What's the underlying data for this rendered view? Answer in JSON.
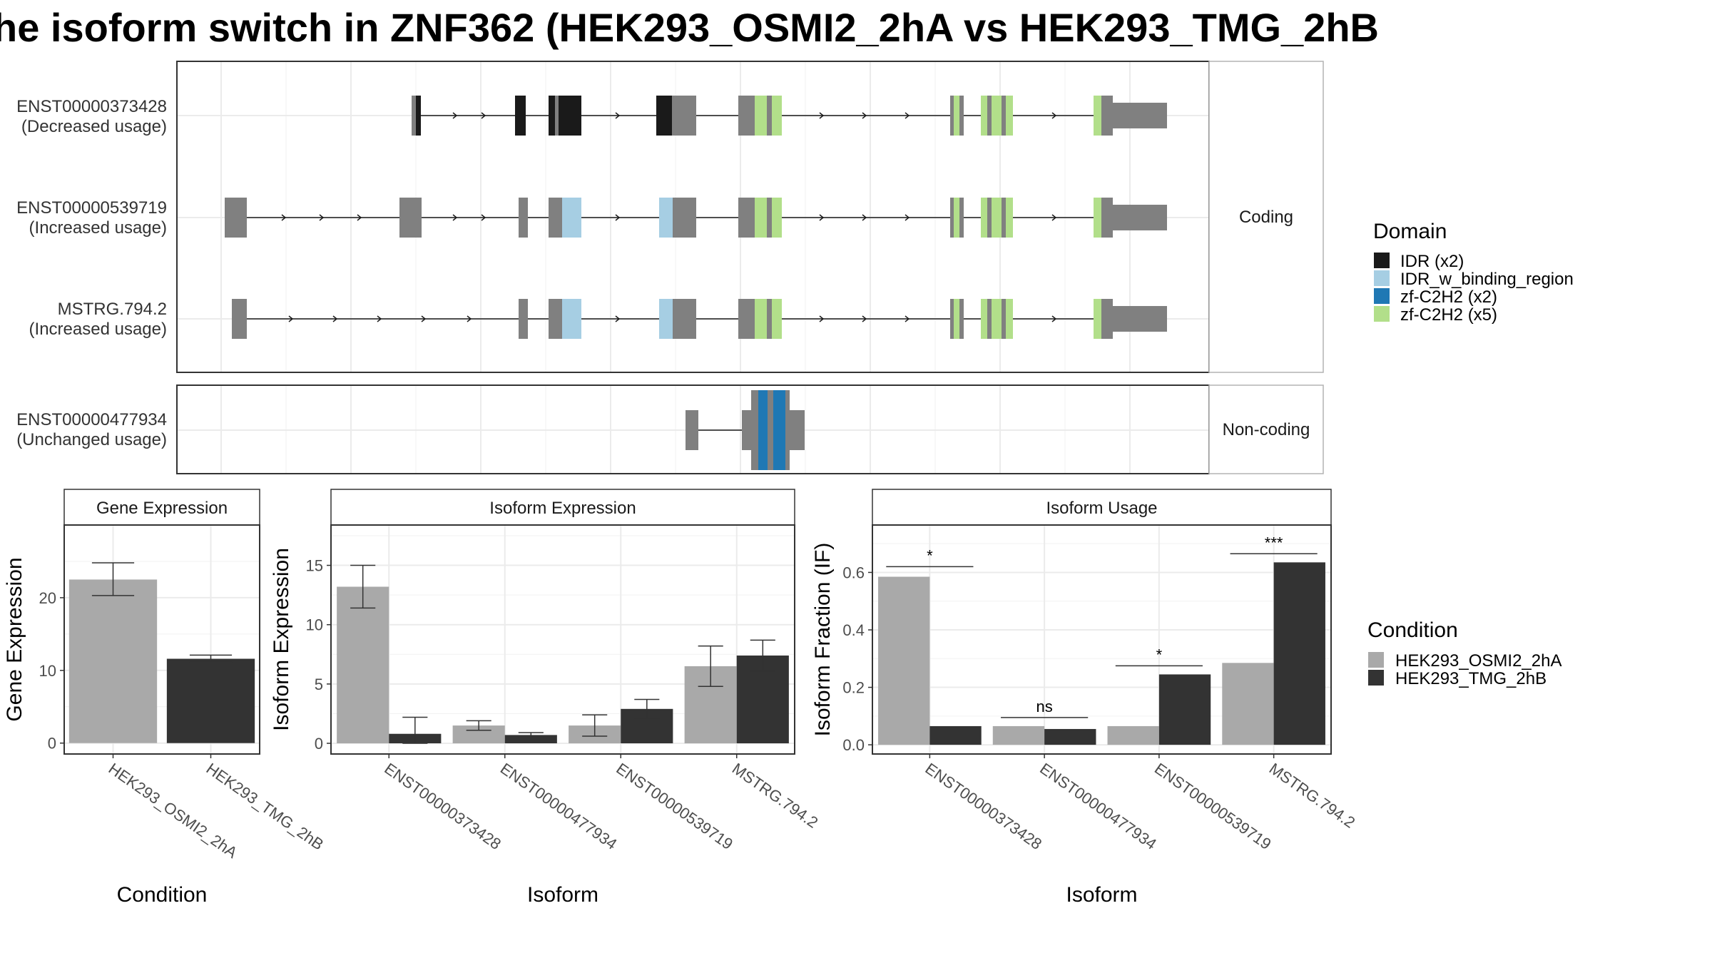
{
  "title": "he isoform switch in ZNF362 (HEK293_OSMI2_2hA vs HEK293_TMG_2hB",
  "colors": {
    "exon": "#808080",
    "IDR (x2)": "#1a1a1a",
    "IDR_w_binding_region": "#a6cee3",
    "zf-C2H2 (x2)": "#1f78b4",
    "zf-C2H2 (x5)": "#b2df8a",
    "cond1": "#a9a9a9",
    "cond2": "#333333",
    "grid": "#ebebeb",
    "panel_border": "#333333"
  },
  "transcript_panel": {
    "coding_label": "Coding",
    "noncoding_label": "Non-coding",
    "transcripts": [
      {
        "id": "ENST00000373428",
        "status": "(Decreased usage)",
        "group": "coding"
      },
      {
        "id": "ENST00000539719",
        "status": "(Increased usage)",
        "group": "coding"
      },
      {
        "id": "MSTRG.794.2",
        "status": "(Increased usage)",
        "group": "coding"
      },
      {
        "id": "ENST00000477934",
        "status": "(Unchanged usage)",
        "group": "noncoding"
      }
    ]
  },
  "legend_domain": {
    "title": "Domain",
    "items": [
      "IDR (x2)",
      "IDR_w_binding_region",
      "zf-C2H2 (x2)",
      "zf-C2H2 (x5)"
    ]
  },
  "legend_condition": {
    "title": "Condition",
    "items": [
      "HEK293_OSMI2_2hA",
      "HEK293_TMG_2hB"
    ]
  },
  "chart_data": [
    {
      "type": "bar",
      "title": "Gene Expression",
      "xlabel": "Condition",
      "ylabel": "Gene Expression",
      "categories": [
        "HEK293_OSMI2_2hA",
        "HEK293_TMG_2hB"
      ],
      "values": [
        22.5,
        11.6
      ],
      "errors": [
        [
          20.3,
          24.8
        ],
        [
          11.1,
          12.1
        ]
      ],
      "ylim": [
        -1.5,
        30
      ],
      "yticks": [
        0,
        10,
        20
      ],
      "grid": true
    },
    {
      "type": "bar",
      "title": "Isoform Expression",
      "xlabel": "Isoform",
      "ylabel": "Isoform Expression",
      "categories": [
        "ENST00000373428",
        "ENST00000477934",
        "ENST00000539719",
        "MSTRG.794.2"
      ],
      "series": [
        {
          "name": "HEK293_OSMI2_2hA",
          "values": [
            13.2,
            1.5,
            1.5,
            6.5
          ],
          "errors": [
            [
              11.4,
              15.0
            ],
            [
              1.1,
              1.9
            ],
            [
              0.6,
              2.4
            ],
            [
              4.8,
              8.2
            ]
          ]
        },
        {
          "name": "HEK293_TMG_2hB",
          "values": [
            0.8,
            0.7,
            2.9,
            7.4
          ],
          "errors": [
            [
              0.0,
              2.2
            ],
            [
              0.5,
              0.9
            ],
            [
              2.1,
              3.7
            ],
            [
              6.1,
              8.7
            ]
          ]
        }
      ],
      "ylim": [
        -0.9,
        18.4
      ],
      "yticks": [
        0,
        5,
        10,
        15
      ],
      "grid": true
    },
    {
      "type": "bar",
      "title": "Isoform Usage",
      "xlabel": "Isoform",
      "ylabel": "Isoform Fraction (IF)",
      "categories": [
        "ENST00000373428",
        "ENST00000477934",
        "ENST00000539719",
        "MSTRG.794.2"
      ],
      "series": [
        {
          "name": "HEK293_OSMI2_2hA",
          "values": [
            0.585,
            0.065,
            0.065,
            0.285
          ]
        },
        {
          "name": "HEK293_TMG_2hB",
          "values": [
            0.065,
            0.055,
            0.245,
            0.635
          ]
        }
      ],
      "significance": [
        "*",
        "ns",
        "*",
        "***"
      ],
      "sig_levels": [
        0.62,
        0.095,
        0.275,
        0.665
      ],
      "ylim": [
        -0.032,
        0.765
      ],
      "yticks": [
        0.0,
        0.2,
        0.4,
        0.6
      ],
      "ytick_labels": [
        "0.0",
        "0.2",
        "0.4",
        "0.6"
      ],
      "grid": true
    }
  ]
}
